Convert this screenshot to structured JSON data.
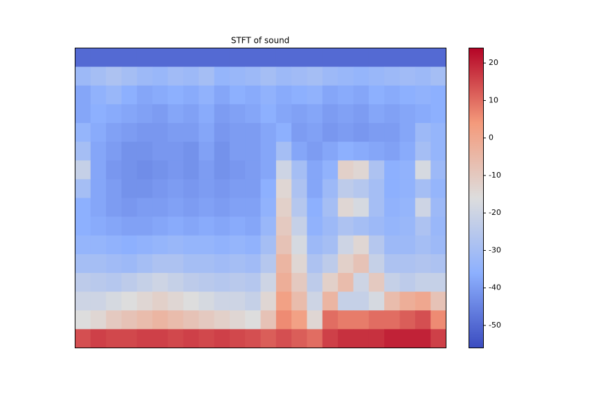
{
  "chart_data": {
    "type": "heatmap",
    "title": "STFT of sound",
    "colormap": "coolwarm",
    "clim": [
      -56,
      24
    ],
    "cticks": [
      -50,
      -40,
      -30,
      -20,
      -10,
      0,
      10,
      20
    ],
    "z": [
      [
        -50,
        -50,
        -50,
        -50,
        -50,
        -50,
        -50,
        -50,
        -50,
        -50,
        -50,
        -50,
        -50,
        -50,
        -50,
        -50,
        -50,
        -50,
        -50,
        -50,
        -50,
        -50,
        -50,
        -50
      ],
      [
        -32,
        -30,
        -28,
        -30,
        -32,
        -33,
        -31,
        -32,
        -30,
        -34,
        -33,
        -32,
        -30,
        -32,
        -31,
        -30,
        -32,
        -33,
        -34,
        -33,
        -32,
        -31,
        -32,
        -30
      ],
      [
        -38,
        -35,
        -33,
        -36,
        -38,
        -37,
        -36,
        -37,
        -35,
        -38,
        -36,
        -37,
        -35,
        -37,
        -36,
        -35,
        -38,
        -37,
        -38,
        -36,
        -37,
        -36,
        -35,
        -36
      ],
      [
        -38,
        -36,
        -37,
        -38,
        -39,
        -40,
        -38,
        -39,
        -37,
        -40,
        -39,
        -38,
        -36,
        -38,
        -39,
        -38,
        -40,
        -39,
        -40,
        -38,
        -39,
        -38,
        -37,
        -36
      ],
      [
        -34,
        -37,
        -39,
        -40,
        -41,
        -41,
        -40,
        -40,
        -38,
        -41,
        -40,
        -40,
        -38,
        -36,
        -40,
        -39,
        -41,
        -40,
        -41,
        -40,
        -40,
        -38,
        -32,
        -34
      ],
      [
        -30,
        -38,
        -40,
        -42,
        -42,
        -41,
        -41,
        -42,
        -39,
        -42,
        -40,
        -40,
        -38,
        -30,
        -38,
        -40,
        -38,
        -36,
        -37,
        -38,
        -39,
        -37,
        -30,
        -34
      ],
      [
        -22,
        -38,
        -41,
        -42,
        -43,
        -42,
        -41,
        -42,
        -40,
        -42,
        -41,
        -40,
        -38,
        -20,
        -30,
        -38,
        -35,
        -12,
        -14,
        -28,
        -36,
        -35,
        -18,
        -32
      ],
      [
        -30,
        -38,
        -40,
        -42,
        -42,
        -41,
        -40,
        -41,
        -40,
        -41,
        -40,
        -40,
        -36,
        -14,
        -28,
        -38,
        -32,
        -24,
        -26,
        -30,
        -36,
        -35,
        -30,
        -34
      ],
      [
        -36,
        -38,
        -40,
        -41,
        -40,
        -40,
        -39,
        -40,
        -39,
        -40,
        -39,
        -39,
        -35,
        -12,
        -26,
        -36,
        -30,
        -14,
        -18,
        -30,
        -35,
        -34,
        -20,
        -32
      ],
      [
        -36,
        -37,
        -38,
        -39,
        -39,
        -38,
        -37,
        -38,
        -37,
        -38,
        -37,
        -38,
        -33,
        -10,
        -22,
        -35,
        -32,
        -28,
        -30,
        -32,
        -34,
        -33,
        -28,
        -33
      ],
      [
        -34,
        -34,
        -35,
        -36,
        -35,
        -34,
        -33,
        -34,
        -34,
        -35,
        -34,
        -35,
        -30,
        -8,
        -18,
        -32,
        -30,
        -20,
        -14,
        -26,
        -32,
        -32,
        -30,
        -32
      ],
      [
        -30,
        -30,
        -31,
        -32,
        -30,
        -28,
        -28,
        -30,
        -30,
        -31,
        -30,
        -31,
        -26,
        -4,
        -14,
        -28,
        -24,
        -12,
        -8,
        -22,
        -28,
        -28,
        -27,
        -28
      ],
      [
        -24,
        -25,
        -26,
        -24,
        -22,
        -20,
        -22,
        -24,
        -25,
        -26,
        -25,
        -26,
        -20,
        -2,
        -10,
        -24,
        -12,
        -6,
        -20,
        -10,
        -22,
        -24,
        -22,
        -22
      ],
      [
        -20,
        -20,
        -18,
        -16,
        -14,
        -12,
        -14,
        -16,
        -18,
        -20,
        -20,
        -22,
        -14,
        2,
        -6,
        -20,
        -4,
        -22,
        -22,
        -18,
        -6,
        -2,
        0,
        -8
      ],
      [
        -16,
        -14,
        -10,
        -8,
        -6,
        -4,
        -6,
        -8,
        -10,
        -12,
        -14,
        -16,
        -8,
        6,
        2,
        -14,
        10,
        8,
        8,
        10,
        10,
        12,
        14,
        6
      ],
      [
        14,
        16,
        15,
        15,
        16,
        16,
        15,
        16,
        15,
        16,
        15,
        14,
        12,
        14,
        12,
        10,
        16,
        18,
        18,
        18,
        20,
        20,
        20,
        16
      ]
    ]
  }
}
